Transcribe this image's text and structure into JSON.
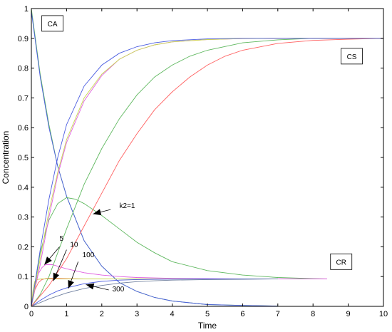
{
  "chart_data": {
    "type": "line",
    "title": "",
    "xlabel": "Time",
    "ylabel": "Concentration",
    "xlim": [
      0,
      10
    ],
    "ylim": [
      0,
      1
    ],
    "grid": false,
    "xticks": [
      "0",
      "1",
      "2",
      "3",
      "4",
      "5",
      "6",
      "7",
      "8",
      "9",
      "10"
    ],
    "yticks": [
      "0",
      "0.1",
      "0.2",
      "0.3",
      "0.4",
      "0.5",
      "0.6",
      "0.7",
      "0.8",
      "0.9",
      "1"
    ],
    "colors": {
      "k2_1": "#5fb85f",
      "k2_5": "#e060e0",
      "k2_10": "#ff6060",
      "k2_100": "#c8d850",
      "k2_300": "#4a5ce0",
      "cr_extra": "#7080a0"
    },
    "series": [
      {
        "group": "CA",
        "color_key": "k2_1",
        "x": [
          0,
          0.25,
          0.5,
          0.75,
          1,
          1.5,
          2,
          2.5,
          3,
          3.5,
          4,
          5,
          6,
          7
        ],
        "y": [
          1.0,
          0.78,
          0.61,
          0.47,
          0.37,
          0.22,
          0.135,
          0.08,
          0.05,
          0.03,
          0.018,
          0.006,
          0.003,
          0.001
        ]
      },
      {
        "group": "CA",
        "color_key": "k2_300",
        "x": [
          0,
          0.25,
          0.5,
          0.75,
          1,
          1.5,
          2,
          2.5,
          3,
          3.5,
          4,
          5,
          6,
          7
        ],
        "y": [
          0.99,
          0.77,
          0.6,
          0.47,
          0.37,
          0.22,
          0.135,
          0.08,
          0.05,
          0.03,
          0.018,
          0.006,
          0.003,
          0.001
        ]
      },
      {
        "group": "CR",
        "color_key": "k2_1",
        "x": [
          0,
          0.25,
          0.5,
          0.75,
          1,
          1.25,
          1.5,
          2,
          2.5,
          3,
          3.5,
          4,
          5,
          6,
          7,
          8,
          8.4
        ],
        "y": [
          0,
          0.18,
          0.29,
          0.345,
          0.365,
          0.36,
          0.345,
          0.305,
          0.26,
          0.215,
          0.18,
          0.15,
          0.12,
          0.105,
          0.097,
          0.093,
          0.092
        ]
      },
      {
        "group": "CR",
        "color_key": "k2_5",
        "x": [
          0,
          0.1,
          0.2,
          0.3,
          0.4,
          0.6,
          0.8,
          1,
          1.5,
          2,
          2.5,
          3,
          4,
          5,
          6,
          7,
          8,
          8.4
        ],
        "y": [
          0,
          0.07,
          0.11,
          0.13,
          0.14,
          0.14,
          0.133,
          0.126,
          0.113,
          0.105,
          0.1,
          0.097,
          0.094,
          0.093,
          0.092,
          0.092,
          0.092,
          0.092
        ]
      },
      {
        "group": "CR",
        "color_key": "k2_10",
        "x": [
          0,
          0.1,
          0.2,
          0.3,
          0.4,
          0.5,
          0.7,
          1,
          1.5,
          2,
          3,
          4,
          5,
          6,
          7
        ],
        "y": [
          0,
          0.055,
          0.08,
          0.09,
          0.093,
          0.094,
          0.094,
          0.093,
          0.092,
          0.092,
          0.092,
          0.092,
          0.092,
          0.092,
          0.092
        ]
      },
      {
        "group": "CR",
        "color_key": "k2_100",
        "x": [
          0,
          0.05,
          0.1,
          0.2,
          0.3,
          0.5,
          1,
          2,
          3,
          4,
          5,
          6,
          7
        ],
        "y": [
          0,
          0.06,
          0.085,
          0.091,
          0.092,
          0.092,
          0.092,
          0.092,
          0.092,
          0.092,
          0.092,
          0.092,
          0.092
        ]
      },
      {
        "group": "CR",
        "color_key": "k2_300",
        "x": [
          0,
          0.25,
          0.5,
          0.75,
          1,
          1.5,
          2,
          2.5,
          3,
          3.5,
          4,
          5,
          6,
          7
        ],
        "y": [
          0,
          0.02,
          0.038,
          0.052,
          0.062,
          0.076,
          0.084,
          0.088,
          0.09,
          0.091,
          0.0915,
          0.092,
          0.092,
          0.092
        ]
      },
      {
        "group": "CR",
        "color_key": "cr_extra",
        "x": [
          0,
          0.5,
          1,
          1.5,
          2,
          2.5,
          3,
          3.5,
          4,
          5,
          6,
          7
        ],
        "y": [
          0,
          0.025,
          0.045,
          0.06,
          0.07,
          0.078,
          0.083,
          0.086,
          0.088,
          0.09,
          0.091,
          0.092
        ]
      },
      {
        "group": "CS",
        "color_key": "k2_1",
        "x": [
          0,
          0.25,
          0.5,
          0.75,
          1,
          1.5,
          2,
          2.5,
          3,
          3.5,
          4,
          4.5,
          5,
          6,
          7,
          8,
          9,
          10
        ],
        "y": [
          0,
          0.04,
          0.1,
          0.18,
          0.26,
          0.41,
          0.53,
          0.63,
          0.71,
          0.77,
          0.81,
          0.84,
          0.86,
          0.885,
          0.895,
          0.9,
          0.9,
          0.9
        ]
      },
      {
        "group": "CS",
        "color_key": "k2_5",
        "x": [
          0,
          0.25,
          0.5,
          0.75,
          1,
          1.5,
          2,
          2.5,
          3,
          3.5,
          4,
          5,
          6,
          7,
          8,
          9,
          10
        ],
        "y": [
          0,
          0.14,
          0.3,
          0.44,
          0.55,
          0.69,
          0.775,
          0.83,
          0.86,
          0.878,
          0.888,
          0.896,
          0.899,
          0.9,
          0.9,
          0.9,
          0.9
        ]
      },
      {
        "group": "CS",
        "color_key": "k2_10",
        "x": [
          0,
          0.5,
          1,
          1.5,
          2,
          2.5,
          3,
          3.5,
          4,
          4.5,
          5,
          5.5,
          6,
          7,
          8,
          9,
          10
        ],
        "y": [
          0,
          0.07,
          0.16,
          0.27,
          0.38,
          0.49,
          0.58,
          0.66,
          0.72,
          0.77,
          0.81,
          0.84,
          0.86,
          0.883,
          0.893,
          0.897,
          0.9
        ]
      },
      {
        "group": "CS",
        "color_key": "k2_100",
        "x": [
          0,
          0.25,
          0.5,
          0.75,
          1,
          1.5,
          2,
          2.5,
          3,
          3.5,
          4,
          5,
          6,
          7,
          8,
          9,
          10
        ],
        "y": [
          0,
          0.16,
          0.32,
          0.45,
          0.56,
          0.7,
          0.78,
          0.83,
          0.86,
          0.878,
          0.888,
          0.896,
          0.899,
          0.9,
          0.9,
          0.9,
          0.9
        ]
      },
      {
        "group": "CS",
        "color_key": "k2_300",
        "x": [
          0,
          0.25,
          0.5,
          0.75,
          1,
          1.5,
          2,
          2.5,
          3,
          3.5,
          4,
          5,
          6,
          7,
          8,
          9,
          10
        ],
        "y": [
          0,
          0.19,
          0.36,
          0.5,
          0.61,
          0.74,
          0.81,
          0.85,
          0.872,
          0.885,
          0.892,
          0.898,
          0.9,
          0.9,
          0.9,
          0.9,
          0.9
        ]
      }
    ],
    "legend_boxes": [
      {
        "text": "CA",
        "at": [
          0.6,
          0.95
        ]
      },
      {
        "text": "CS",
        "at": [
          9.1,
          0.84
        ]
      },
      {
        "text": "CR",
        "at": [
          8.8,
          0.15
        ]
      }
    ],
    "annotations": [
      {
        "text": "k2=1",
        "text_at": [
          2.5,
          0.33
        ],
        "arrow_from": [
          2.25,
          0.325
        ],
        "arrow_to": [
          1.75,
          0.31
        ]
      },
      {
        "text": "5",
        "text_at": [
          0.8,
          0.22
        ],
        "arrow_from": [
          0.8,
          0.2
        ],
        "arrow_to": [
          0.37,
          0.14
        ]
      },
      {
        "text": "10",
        "text_at": [
          1.1,
          0.2
        ],
        "arrow_from": [
          1.0,
          0.19
        ],
        "arrow_to": [
          0.62,
          0.085
        ]
      },
      {
        "text": "100",
        "text_at": [
          1.45,
          0.165
        ],
        "arrow_from": [
          1.33,
          0.15
        ],
        "arrow_to": [
          1.05,
          0.06
        ]
      },
      {
        "text": "300",
        "text_at": [
          2.3,
          0.05
        ],
        "arrow_from": [
          2.2,
          0.055
        ],
        "arrow_to": [
          1.55,
          0.073
        ]
      }
    ]
  }
}
